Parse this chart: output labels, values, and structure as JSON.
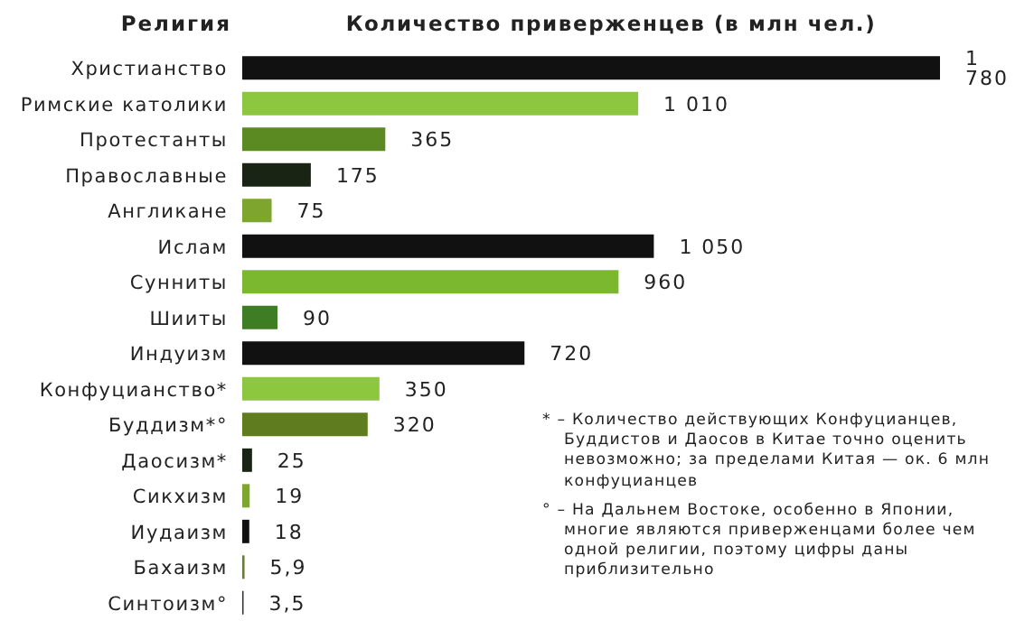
{
  "chart_data": {
    "type": "bar",
    "orientation": "horizontal",
    "title": "Количество приверженцев (в млн чел.)",
    "ylabel": "Религия",
    "categories": [
      "Христианство",
      "Римские католики",
      "Протестанты",
      "Православные",
      "Англикане",
      "Ислам",
      "Сунниты",
      "Шииты",
      "Индуизм",
      "Конфуцианство*",
      "Буддизм*°",
      "Даосизм*",
      "Сикхизм",
      "Иудаизм",
      "Бахаизм",
      "Синтоизм°"
    ],
    "values": [
      1780,
      1010,
      365,
      175,
      75,
      1050,
      960,
      90,
      720,
      350,
      320,
      25,
      19,
      18,
      5.9,
      3.5
    ],
    "value_labels": [
      "1 780",
      "1 010",
      "365",
      "175",
      "75",
      "1 050",
      "960",
      "90",
      "720",
      "350",
      "320",
      "25",
      "19",
      "18",
      "5,9",
      "3,5"
    ],
    "colors": [
      "#111111",
      "#8dc63f",
      "#5b8a22",
      "#1a2414",
      "#7ea52e",
      "#111111",
      "#7cb82f",
      "#3f7d24",
      "#111111",
      "#8dc63f",
      "#5f7d1f",
      "#1a2414",
      "#7ea52e",
      "#111111",
      "#6b7a3a",
      "#333333"
    ],
    "annotations": [
      "* – Количество действующих Конфуцианцев, Буддистов и Даосов в Китае точно оценить невозможно; за пределами Китая — ок. 6 млн конфуцианцев",
      "° – На Дальнем Востоке, особенно в Японии, многие являются приверженцами более чем одной религии, поэтому цифры даны приблизительно"
    ]
  }
}
